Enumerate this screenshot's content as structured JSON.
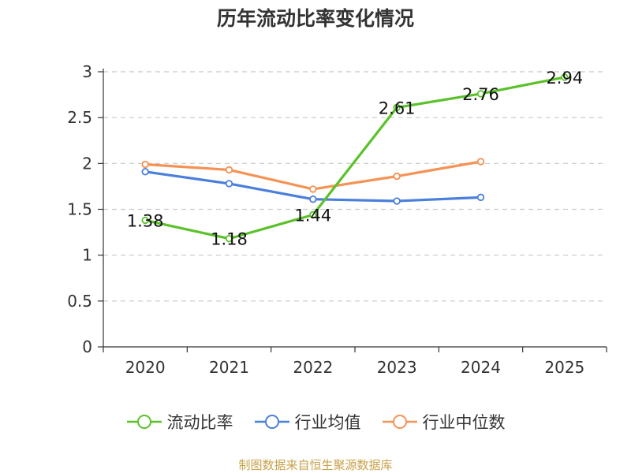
{
  "chart_data": {
    "type": "line",
    "title": "历年流动比率变化情况",
    "categories": [
      "2020",
      "2021",
      "2022",
      "2023",
      "2024",
      "2025"
    ],
    "yticks": [
      "0",
      "0.5",
      "1",
      "1.5",
      "2",
      "2.5",
      "3"
    ],
    "ylim": [
      0,
      3
    ],
    "grid": true,
    "legend_position": "bottom",
    "series": [
      {
        "name": "流动比率",
        "color": "#5bc12a",
        "values": [
          1.38,
          1.18,
          1.44,
          2.61,
          2.76,
          2.94
        ],
        "labels": [
          "1.38",
          "1.18",
          "1.44",
          "2.61",
          "2.76",
          "2.94"
        ]
      },
      {
        "name": "行业均值",
        "color": "#4a7fdc",
        "values": [
          1.91,
          1.78,
          1.61,
          1.59,
          1.63,
          null
        ]
      },
      {
        "name": "行业中位数",
        "color": "#f59255",
        "values": [
          1.99,
          1.93,
          1.72,
          1.86,
          2.02,
          null
        ]
      }
    ]
  },
  "source": "制图数据来自恒生聚源数据库"
}
